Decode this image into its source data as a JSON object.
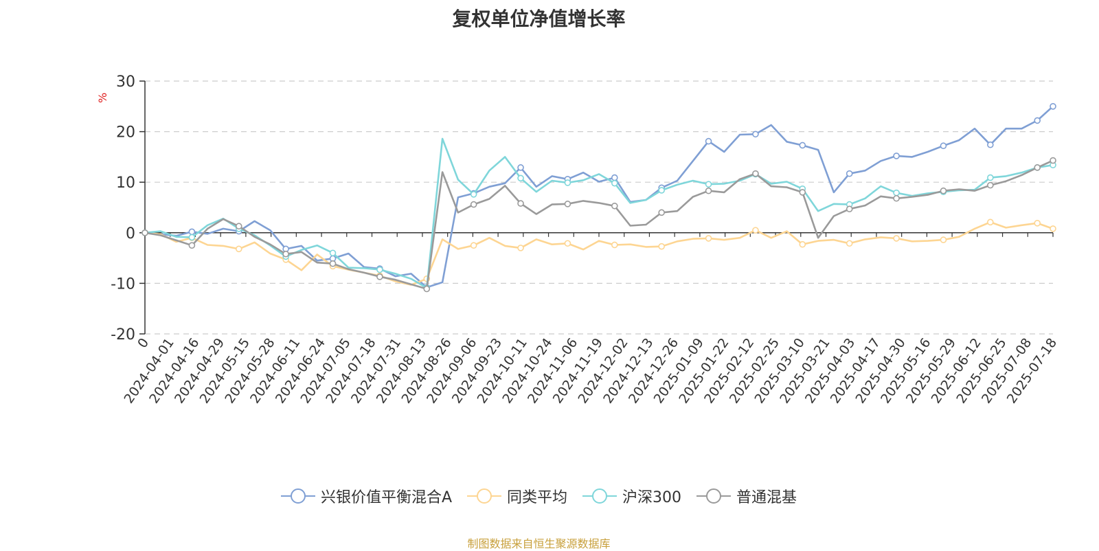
{
  "chart_data": {
    "type": "line",
    "title": "复权单位净值增长率",
    "ylabel": "%",
    "ylim": [
      -20,
      30
    ],
    "yticks": [
      -20,
      -10,
      0,
      10,
      20,
      30
    ],
    "x_tick_labels": [
      "0",
      "2024-04-01",
      "2024-04-16",
      "2024-04-29",
      "2024-05-15",
      "2024-05-28",
      "2024-06-11",
      "2024-06-24",
      "2024-07-05",
      "2024-07-18",
      "2024-07-31",
      "2024-08-13",
      "2024-08-26",
      "2024-09-06",
      "2024-09-23",
      "2024-10-11",
      "2024-10-24",
      "2024-11-06",
      "2024-11-19",
      "2024-12-02",
      "2024-12-13",
      "2024-12-26",
      "2025-01-09",
      "2025-01-22",
      "2025-02-12",
      "2025-02-25",
      "2025-03-10",
      "2025-03-21",
      "2025-04-03",
      "2025-04-17",
      "2025-04-30",
      "2025-05-16",
      "2025-05-29",
      "2025-06-12",
      "2025-06-25",
      "2025-07-08",
      "2025-07-18"
    ],
    "grid": true,
    "legend_position": "bottom",
    "series": [
      {
        "name": "兴银价值平衡混合A",
        "color": "#7f9fd4",
        "values": [
          0,
          -0.3,
          -0.6,
          0.2,
          -0.2,
          0.8,
          0.3,
          2.3,
          0.5,
          -3.2,
          -2.6,
          -5.5,
          -5.1,
          -4.1,
          -6.8,
          -7.1,
          -8.6,
          -8.1,
          -10.8,
          -9.8,
          7.0,
          7.8,
          9.1,
          9.8,
          12.9,
          9.1,
          11.2,
          10.6,
          11.9,
          10.1,
          10.9,
          6.1,
          6.5,
          8.9,
          10.3,
          14.2,
          18.1,
          16.0,
          19.4,
          19.5,
          21.3,
          18.0,
          17.3,
          16.4,
          8.0,
          11.7,
          12.3,
          14.2,
          15.2,
          15.0,
          16.0,
          17.2,
          18.3,
          20.6,
          17.4,
          20.6,
          20.6,
          22.2,
          25.0
        ]
      },
      {
        "name": "同类平均",
        "color": "#fdd592",
        "values": [
          0,
          -0.3,
          -1.8,
          -1.0,
          -2.4,
          -2.6,
          -3.2,
          -1.9,
          -4.1,
          -5.3,
          -7.4,
          -4.3,
          -6.6,
          -7.3,
          -7.9,
          -8.5,
          -9.6,
          -10.3,
          -9.1,
          -1.3,
          -3.2,
          -2.5,
          -1.0,
          -2.6,
          -3.0,
          -1.3,
          -2.3,
          -2.1,
          -3.3,
          -1.6,
          -2.4,
          -2.3,
          -2.8,
          -2.7,
          -1.7,
          -1.2,
          -1.1,
          -1.4,
          -1.0,
          0.5,
          -1.0,
          0.3,
          -2.3,
          -1.6,
          -1.4,
          -2.1,
          -1.3,
          -0.9,
          -1.1,
          -1.7,
          -1.6,
          -1.4,
          -0.8,
          0.8,
          2.1,
          1.0,
          1.5,
          1.9,
          0.8
        ]
      },
      {
        "name": "沪深300",
        "color": "#7fd6da",
        "values": [
          0,
          0.3,
          -0.8,
          -0.9,
          1.5,
          2.8,
          0.8,
          -0.5,
          -2.5,
          -4.7,
          -3.4,
          -2.5,
          -4.0,
          -6.9,
          -7.0,
          -7.3,
          -8.1,
          -9.1,
          -10.9,
          18.6,
          10.5,
          7.6,
          12.3,
          15.0,
          10.8,
          8.1,
          10.3,
          9.9,
          10.4,
          11.6,
          9.8,
          5.9,
          6.5,
          8.4,
          9.5,
          10.3,
          9.6,
          9.7,
          10.3,
          11.6,
          9.7,
          10.1,
          8.7,
          4.3,
          5.7,
          5.6,
          6.8,
          9.2,
          7.9,
          7.3,
          7.8,
          8.1,
          8.4,
          8.5,
          10.9,
          11.2,
          11.9,
          12.9,
          13.4
        ]
      },
      {
        "name": "普通混基",
        "color": "#9a9a9a",
        "values": [
          0,
          -0.5,
          -1.5,
          -2.5,
          0.8,
          2.7,
          1.3,
          -0.8,
          -2.3,
          -4.2,
          -3.8,
          -5.9,
          -6.1,
          -7.2,
          -7.9,
          -8.7,
          -9.3,
          -10.2,
          -11.1,
          12.0,
          4.0,
          5.6,
          6.7,
          9.3,
          5.8,
          3.7,
          5.6,
          5.7,
          6.3,
          5.9,
          5.3,
          1.4,
          1.6,
          4.0,
          4.3,
          7.1,
          8.3,
          8.0,
          10.6,
          11.7,
          9.2,
          9.0,
          8.0,
          -1.0,
          3.3,
          4.7,
          5.4,
          7.2,
          6.8,
          7.1,
          7.5,
          8.3,
          8.6,
          8.3,
          9.4,
          10.2,
          11.4,
          12.9,
          14.3
        ]
      }
    ]
  },
  "source_text": "制图数据来自恒生聚源数据库"
}
